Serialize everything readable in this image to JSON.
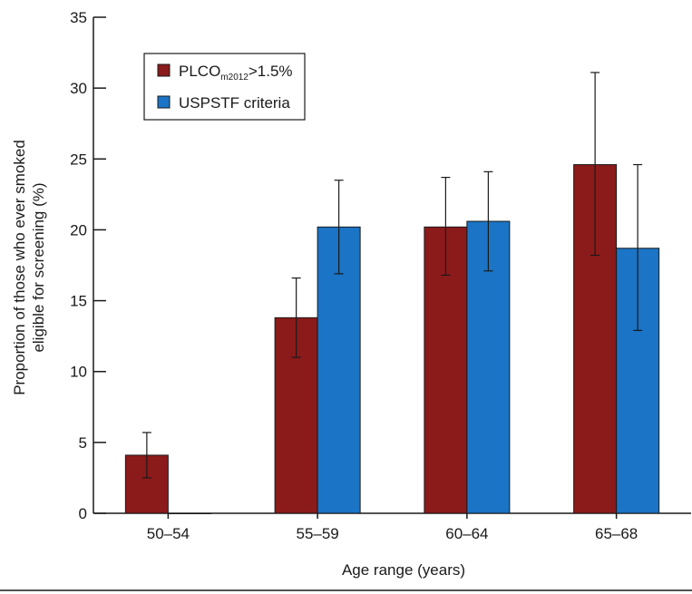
{
  "chart_data": {
    "type": "bar",
    "categories": [
      "50–54",
      "55–59",
      "60–64",
      "65–68"
    ],
    "series": [
      {
        "name": "PLCOm2012>1.5%",
        "name_parts": {
          "main": "PLCO",
          "sub": "m2012",
          "suffix": ">1.5%"
        },
        "color": "#8b1a1a",
        "values": [
          4.1,
          13.8,
          20.2,
          24.6
        ],
        "err_low": [
          2.5,
          11.0,
          16.8,
          18.2
        ],
        "err_high": [
          5.7,
          16.6,
          23.7,
          31.1
        ]
      },
      {
        "name": "USPSTF criteria",
        "color": "#1b74c5",
        "values": [
          0,
          20.2,
          20.6,
          18.7
        ],
        "err_low": [
          null,
          16.9,
          17.1,
          12.9
        ],
        "err_high": [
          null,
          23.5,
          24.1,
          24.6
        ]
      }
    ],
    "xlabel": "Age range (years)",
    "ylabel_lines": [
      "Proportion of those who ever smoked",
      "eligible for screening (%)"
    ],
    "ylim": [
      0,
      35
    ],
    "yticks": [
      0,
      5,
      10,
      15,
      20,
      25,
      30,
      35
    ],
    "grid": false,
    "legend": "top-left"
  }
}
